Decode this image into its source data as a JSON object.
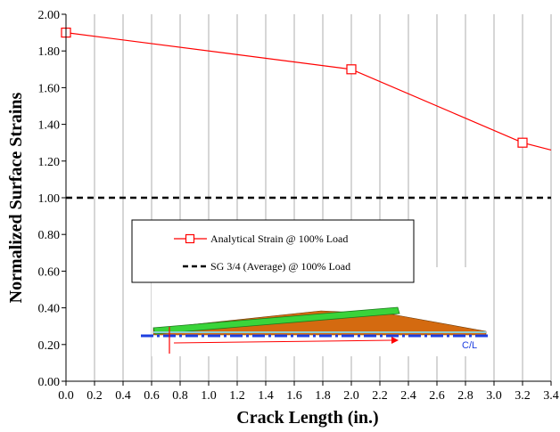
{
  "chart_data": {
    "type": "line",
    "xlabel": "Crack Length (in.)",
    "ylabel": "Normalized Surface Strains",
    "xlim": [
      0.0,
      3.4
    ],
    "ylim": [
      0.0,
      2.0
    ],
    "x_ticks": [
      "0.0",
      "0.2",
      "0.4",
      "0.6",
      "0.8",
      "1.0",
      "1.2",
      "1.4",
      "1.6",
      "1.8",
      "2.0",
      "2.2",
      "2.4",
      "2.6",
      "2.8",
      "3.0",
      "3.2",
      "3.4"
    ],
    "y_ticks": [
      "0.00",
      "0.20",
      "0.40",
      "0.60",
      "0.80",
      "1.00",
      "1.20",
      "1.40",
      "1.60",
      "1.80",
      "2.00"
    ],
    "grid": "vertical",
    "legend_placement": "center-left",
    "series": [
      {
        "name": "Analytical Strain @ 100% Load",
        "color": "#ff0000",
        "marker": "square-open",
        "x": [
          0.0,
          2.0,
          3.2
        ],
        "y": [
          1.9,
          1.7,
          1.3
        ],
        "line_extends_to": {
          "x": 3.4,
          "y": 1.26
        }
      },
      {
        "name": "SG 3/4 (Average) @ 100% Load",
        "color": "#000000",
        "style": "dashed",
        "x": [
          0.0,
          3.4
        ],
        "y": [
          1.0,
          1.0
        ]
      }
    ],
    "inset": {
      "label": "C/L",
      "colors": {
        "body": "#d46a10",
        "top": "#3ad43a",
        "centerline": "#1e3fe0",
        "arrow": "#ff0000"
      }
    }
  }
}
